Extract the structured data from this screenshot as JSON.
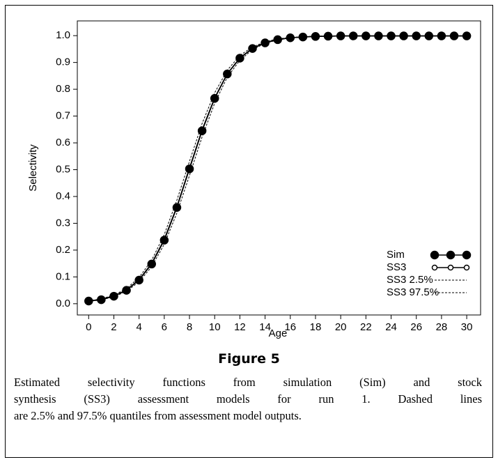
{
  "chart_data": {
    "type": "line",
    "xlabel": "Age",
    "ylabel": "Selectivity",
    "x": [
      0,
      1,
      2,
      3,
      4,
      5,
      6,
      7,
      8,
      9,
      10,
      11,
      12,
      13,
      14,
      15,
      16,
      17,
      18,
      19,
      20,
      21,
      22,
      23,
      24,
      25,
      26,
      27,
      28,
      29,
      30
    ],
    "series": [
      {
        "name": "Sim",
        "color": "#000000",
        "marker": "filled",
        "line_style": "solid",
        "values": [
          0.01,
          0.015,
          0.028,
          0.05,
          0.088,
          0.148,
          0.237,
          0.359,
          0.503,
          0.645,
          0.766,
          0.857,
          0.916,
          0.952,
          0.973,
          0.985,
          0.992,
          0.995,
          0.997,
          0.998,
          0.999,
          0.999,
          0.999,
          0.999,
          0.999,
          0.999,
          0.999,
          0.999,
          0.999,
          0.999,
          0.999
        ]
      },
      {
        "name": "SS3",
        "color": "#000000",
        "marker": "open",
        "line_style": "solid",
        "values": [
          0.01,
          0.016,
          0.029,
          0.051,
          0.09,
          0.15,
          0.24,
          0.362,
          0.506,
          0.648,
          0.768,
          0.858,
          0.917,
          0.953,
          0.974,
          0.986,
          0.992,
          0.995,
          0.997,
          0.998,
          0.999,
          0.999,
          0.999,
          0.999,
          0.999,
          0.999,
          0.999,
          0.999,
          0.999,
          0.999,
          0.999
        ]
      },
      {
        "name": "SS3 2.5%",
        "color": "#000000",
        "marker": "none",
        "line_style": "dashed",
        "values": [
          0.009,
          0.014,
          0.026,
          0.046,
          0.082,
          0.138,
          0.222,
          0.338,
          0.478,
          0.622,
          0.748,
          0.845,
          0.908,
          0.948,
          0.971,
          0.984,
          0.991,
          0.995,
          0.997,
          0.998,
          0.999,
          0.999,
          0.999,
          0.999,
          0.999,
          0.999,
          0.999,
          0.999,
          0.999,
          0.999,
          0.999
        ]
      },
      {
        "name": "SS3 97.5%",
        "color": "#000000",
        "marker": "none",
        "line_style": "dashed",
        "values": [
          0.011,
          0.018,
          0.032,
          0.056,
          0.098,
          0.162,
          0.258,
          0.386,
          0.531,
          0.672,
          0.787,
          0.871,
          0.926,
          0.958,
          0.977,
          0.988,
          0.993,
          0.996,
          0.998,
          0.999,
          0.999,
          0.999,
          0.999,
          0.999,
          0.999,
          0.999,
          0.999,
          0.999,
          0.999,
          0.999,
          0.999
        ]
      }
    ],
    "xlim": [
      -0.9,
      31.1
    ],
    "ylim": [
      -0.042,
      1.055
    ],
    "xticks": [
      0,
      2,
      4,
      6,
      8,
      10,
      12,
      14,
      16,
      18,
      20,
      22,
      24,
      26,
      28,
      30
    ],
    "yticks": [
      {
        "value": 0,
        "label": "0.0"
      },
      0.1,
      0.2,
      0.3,
      0.4,
      0.5,
      0.6,
      0.7,
      0.8,
      0.9,
      {
        "value": 1,
        "label": "1.0"
      }
    ],
    "legend": "lower right"
  },
  "figure": {
    "label": "Figure 5",
    "caption_lines": [
      "Estimated selectivity functions from simulation (Sim) and stock",
      "synthesis (SS3) assessment models for run 1. Dashed lines",
      "are 2.5% and 97.5% quantiles from assessment model outputs."
    ]
  }
}
